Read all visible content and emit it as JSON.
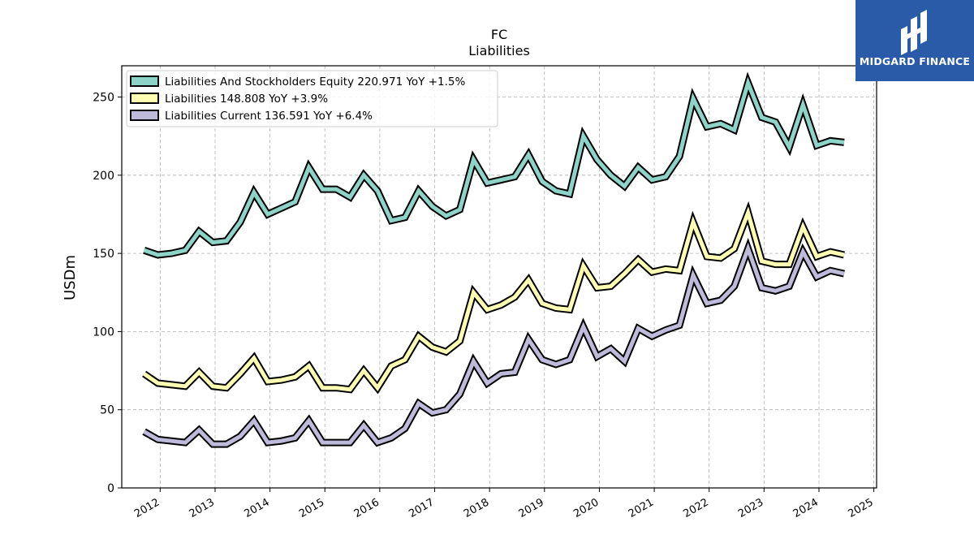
{
  "logo": {
    "text": "MIDGARD FINANCE",
    "bg_color": "#2a5ba8"
  },
  "chart_data": {
    "type": "line",
    "title": "FC",
    "subtitle": "Liabilities",
    "ylabel": "USDm",
    "xlabel": "",
    "ylim": [
      0,
      270
    ],
    "yticks": [
      0,
      50,
      100,
      150,
      200,
      250
    ],
    "xlim": [
      2011.3,
      2025.05
    ],
    "xticks": [
      2012,
      2013,
      2014,
      2015,
      2016,
      2017,
      2018,
      2019,
      2020,
      2021,
      2022,
      2023,
      2024,
      2025
    ],
    "grid": true,
    "legend_position": "top-left",
    "x": [
      "2011-09",
      "2011-12",
      "2012-03",
      "2012-06",
      "2012-09",
      "2012-12",
      "2013-03",
      "2013-06",
      "2013-09",
      "2013-12",
      "2014-03",
      "2014-06",
      "2014-09",
      "2014-12",
      "2015-03",
      "2015-06",
      "2015-09",
      "2015-12",
      "2016-03",
      "2016-06",
      "2016-09",
      "2016-12",
      "2017-03",
      "2017-06",
      "2017-09",
      "2017-12",
      "2018-03",
      "2018-06",
      "2018-09",
      "2018-12",
      "2019-03",
      "2019-06",
      "2019-09",
      "2019-12",
      "2020-03",
      "2020-06",
      "2020-09",
      "2020-12",
      "2021-03",
      "2021-06",
      "2021-09",
      "2021-12",
      "2022-03",
      "2022-06",
      "2022-09",
      "2022-12",
      "2023-03",
      "2023-06",
      "2023-09",
      "2023-12",
      "2024-03",
      "2024-06"
    ],
    "series": [
      {
        "name": "Liabilities And Stockholders Equity",
        "legend_label": "Liabilities And Stockholders Equity  220.971 YoY +1.5%",
        "color": "#8dd3c7",
        "values": [
          152,
          149,
          150,
          152,
          164,
          157,
          158,
          170,
          189,
          175,
          179,
          183,
          205,
          191,
          191,
          186,
          200,
          190,
          171,
          173,
          190,
          180,
          174,
          178,
          210,
          195,
          197,
          199,
          213,
          196,
          190,
          188,
          225,
          210,
          200,
          193,
          205,
          197,
          199,
          212,
          249,
          231,
          233,
          229,
          259,
          237,
          234,
          218,
          245,
          219,
          222,
          221
        ]
      },
      {
        "name": "Liabilities",
        "legend_label": "Liabilities  148.808 YoY +3.9%",
        "color": "#ffffb3",
        "values": [
          73,
          67,
          66,
          65,
          74,
          65,
          64,
          73,
          83,
          68,
          69,
          71,
          78,
          64,
          64,
          63,
          75,
          64,
          78,
          82,
          97,
          90,
          87,
          94,
          125,
          114,
          117,
          122,
          133,
          118,
          115,
          114,
          142,
          128,
          129,
          137,
          146,
          138,
          140,
          139,
          170,
          148,
          147,
          153,
          176,
          145,
          143,
          143,
          167,
          148,
          151,
          149
        ]
      },
      {
        "name": "Liabilities Current",
        "legend_label": "Liabilities Current  136.591 YoY +6.4%",
        "color": "#bebada",
        "values": [
          36,
          31,
          30,
          29,
          37,
          28,
          28,
          33,
          43,
          29,
          30,
          32,
          43,
          29,
          29,
          29,
          40,
          29,
          32,
          38,
          54,
          48,
          50,
          60,
          81,
          67,
          73,
          74,
          95,
          82,
          79,
          82,
          103,
          84,
          89,
          81,
          102,
          97,
          101,
          104,
          136,
          118,
          120,
          129,
          153,
          128,
          126,
          129,
          151,
          135,
          139,
          137
        ]
      }
    ]
  }
}
